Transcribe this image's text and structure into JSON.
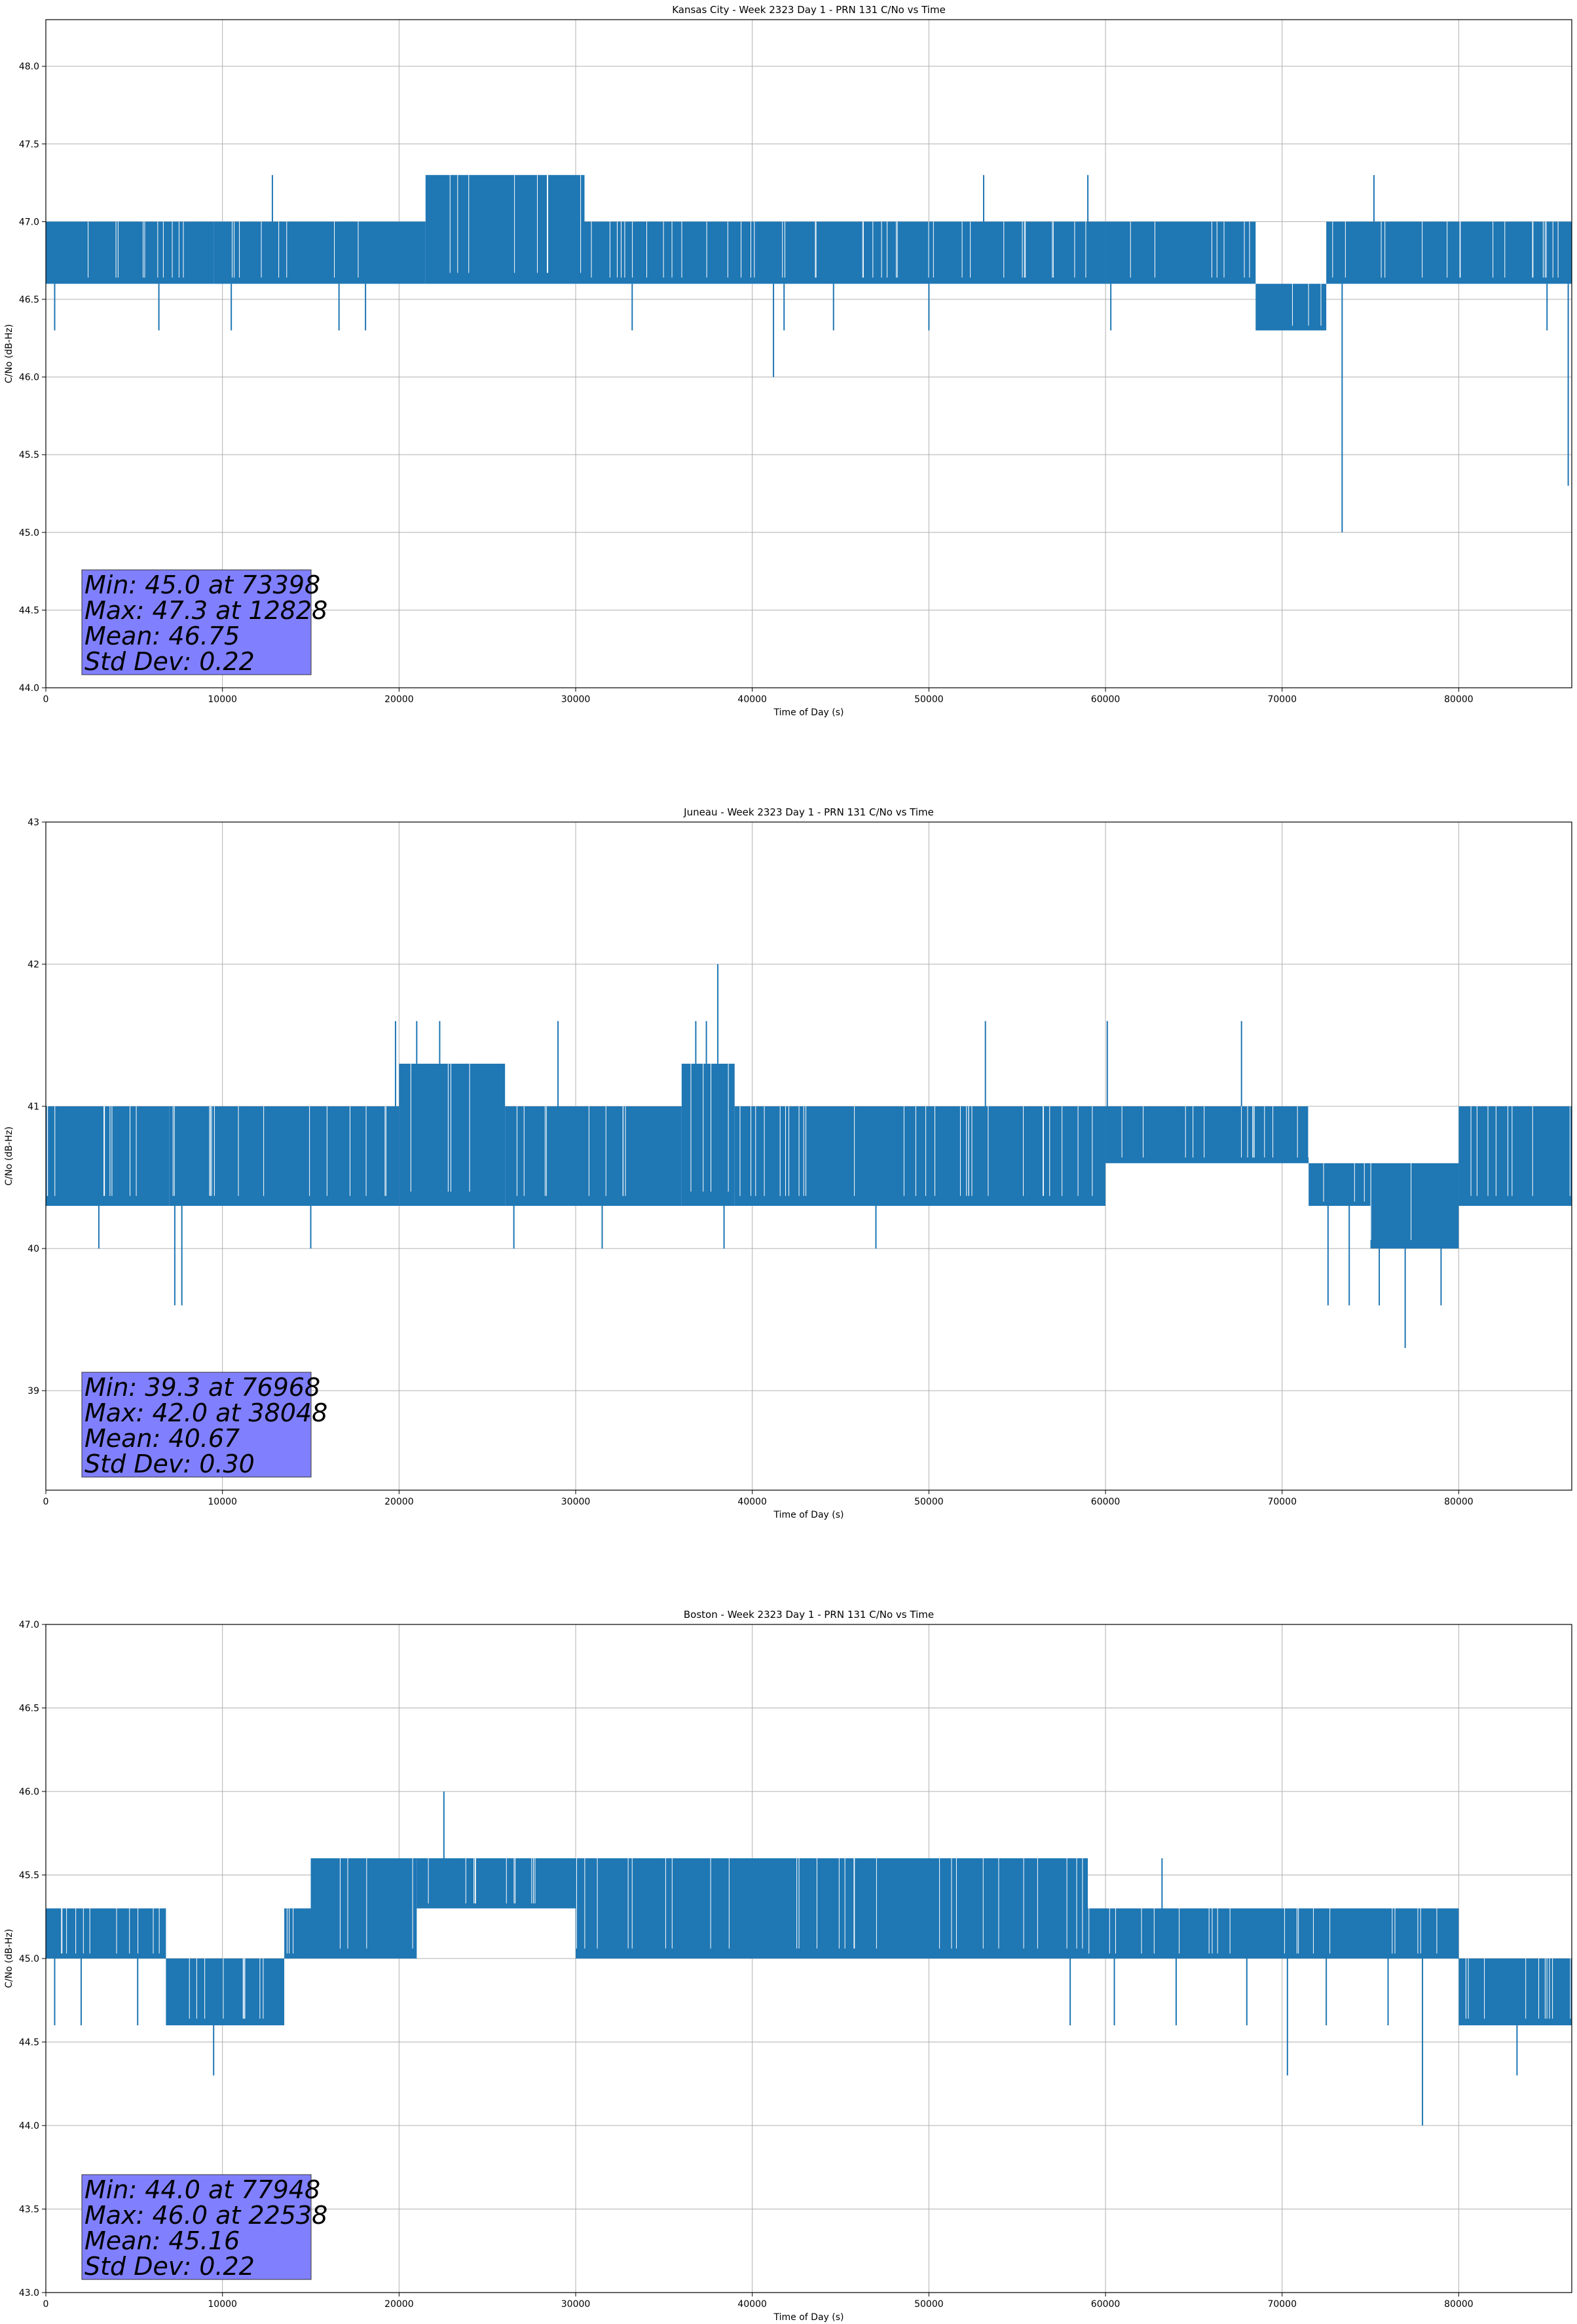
{
  "chart_data": [
    {
      "type": "line",
      "title": "Kansas City - Week 2323 Day 1 - PRN 131 C/No vs Time",
      "xlabel": "Time of Day (s)",
      "ylabel": "C/No (dB-Hz)",
      "xlim": [
        0,
        86400
      ],
      "ylim": [
        44.0,
        48.3
      ],
      "xticks": [
        0,
        10000,
        20000,
        30000,
        40000,
        50000,
        60000,
        70000,
        80000
      ],
      "xtick_labels": [
        "0",
        "10000",
        "20000",
        "30000",
        "40000",
        "50000",
        "60000",
        "70000",
        "80000"
      ],
      "yticks": [
        44.0,
        44.5,
        45.0,
        45.5,
        46.0,
        46.5,
        47.0,
        47.5,
        48.0
      ],
      "ytick_labels": [
        "44.0",
        "44.5",
        "45.0",
        "45.5",
        "46.0",
        "46.5",
        "47.0",
        "47.5",
        "48.0"
      ],
      "grid": true,
      "series_color": "#1f77b4",
      "band_segments": [
        {
          "x": [
            0,
            9500
          ],
          "lo": 46.6,
          "hi": 47.0
        },
        {
          "x": [
            9500,
            21500
          ],
          "lo": 46.6,
          "hi": 47.0
        },
        {
          "x": [
            21500,
            30500
          ],
          "lo": 46.6,
          "hi": 47.3
        },
        {
          "x": [
            30500,
            60000
          ],
          "lo": 46.6,
          "hi": 47.0
        },
        {
          "x": [
            60000,
            68500
          ],
          "lo": 46.6,
          "hi": 47.0
        },
        {
          "x": [
            68500,
            72500
          ],
          "lo": 46.3,
          "hi": 46.6
        },
        {
          "x": [
            72500,
            86400
          ],
          "lo": 46.6,
          "hi": 47.0
        }
      ],
      "spikes": [
        {
          "x": 73398,
          "y": 45.0
        },
        {
          "x": 12828,
          "y": 47.3
        },
        {
          "x": 41200,
          "y": 46.0
        },
        {
          "x": 86200,
          "y": 45.3
        },
        {
          "x": 75200,
          "y": 47.3
        },
        {
          "x": 500,
          "y": 46.3
        },
        {
          "x": 6400,
          "y": 46.3
        },
        {
          "x": 10500,
          "y": 46.3
        },
        {
          "x": 16600,
          "y": 46.3
        },
        {
          "x": 18100,
          "y": 46.3
        },
        {
          "x": 33200,
          "y": 46.3
        },
        {
          "x": 41800,
          "y": 46.3
        },
        {
          "x": 44600,
          "y": 46.3
        },
        {
          "x": 50000,
          "y": 46.3
        },
        {
          "x": 60300,
          "y": 46.3
        },
        {
          "x": 53100,
          "y": 47.3
        },
        {
          "x": 59000,
          "y": 47.3
        },
        {
          "x": 85000,
          "y": 46.3
        }
      ],
      "annotation": {
        "lines": [
          "Min: 45.0 at 73398",
          "Max: 47.3 at 12828",
          "Mean: 46.75",
          "Std Dev: 0.22"
        ],
        "box_color": "#8080ff"
      }
    },
    {
      "type": "line",
      "title": "Juneau - Week 2323 Day 1 - PRN 131 C/No vs Time",
      "xlabel": "Time of Day (s)",
      "ylabel": "C/No (dB-Hz)",
      "xlim": [
        0,
        86400
      ],
      "ylim": [
        38.3,
        43.0
      ],
      "xticks": [
        0,
        10000,
        20000,
        30000,
        40000,
        50000,
        60000,
        70000,
        80000
      ],
      "xtick_labels": [
        "0",
        "10000",
        "20000",
        "30000",
        "40000",
        "50000",
        "60000",
        "70000",
        "80000"
      ],
      "yticks": [
        39,
        40,
        41,
        42,
        43
      ],
      "ytick_labels": [
        "39",
        "40",
        "41",
        "42",
        "43"
      ],
      "grid": true,
      "series_color": "#1f77b4",
      "band_segments": [
        {
          "x": [
            0,
            7000
          ],
          "lo": 40.3,
          "hi": 41.0
        },
        {
          "x": [
            7000,
            20000
          ],
          "lo": 40.3,
          "hi": 41.0
        },
        {
          "x": [
            20000,
            26000
          ],
          "lo": 40.3,
          "hi": 41.3
        },
        {
          "x": [
            26000,
            36000
          ],
          "lo": 40.3,
          "hi": 41.0
        },
        {
          "x": [
            36000,
            39000
          ],
          "lo": 40.3,
          "hi": 41.3
        },
        {
          "x": [
            39000,
            60000
          ],
          "lo": 40.3,
          "hi": 41.0
        },
        {
          "x": [
            60000,
            71500
          ],
          "lo": 40.6,
          "hi": 41.0
        },
        {
          "x": [
            71500,
            75000
          ],
          "lo": 40.3,
          "hi": 40.6
        },
        {
          "x": [
            75000,
            80000
          ],
          "lo": 40.0,
          "hi": 40.6
        },
        {
          "x": [
            80000,
            86400
          ],
          "lo": 40.3,
          "hi": 41.0
        }
      ],
      "spikes": [
        {
          "x": 76968,
          "y": 39.3
        },
        {
          "x": 38048,
          "y": 42.0
        },
        {
          "x": 7300,
          "y": 39.6
        },
        {
          "x": 7700,
          "y": 39.6
        },
        {
          "x": 72600,
          "y": 39.6
        },
        {
          "x": 73800,
          "y": 39.6
        },
        {
          "x": 75500,
          "y": 39.6
        },
        {
          "x": 79000,
          "y": 39.6
        },
        {
          "x": 19800,
          "y": 41.6
        },
        {
          "x": 21000,
          "y": 41.6
        },
        {
          "x": 22300,
          "y": 41.6
        },
        {
          "x": 29000,
          "y": 41.6
        },
        {
          "x": 36800,
          "y": 41.6
        },
        {
          "x": 37400,
          "y": 41.6
        },
        {
          "x": 53200,
          "y": 41.6
        },
        {
          "x": 60100,
          "y": 41.6
        },
        {
          "x": 67700,
          "y": 41.6
        },
        {
          "x": 3000,
          "y": 40.0
        },
        {
          "x": 15000,
          "y": 40.0
        },
        {
          "x": 26500,
          "y": 40.0
        },
        {
          "x": 31500,
          "y": 40.0
        },
        {
          "x": 38400,
          "y": 40.0
        },
        {
          "x": 47000,
          "y": 40.0
        }
      ],
      "annotation": {
        "lines": [
          "Min: 39.3 at 76968",
          "Max: 42.0 at 38048",
          "Mean: 40.67",
          "Std Dev: 0.30"
        ],
        "box_color": "#8080ff"
      }
    },
    {
      "type": "line",
      "title": "Boston - Week 2323 Day 1 - PRN 131 C/No vs Time",
      "xlabel": "Time of Day (s)",
      "ylabel": "C/No (dB-Hz)",
      "xlim": [
        0,
        86400
      ],
      "ylim": [
        43.0,
        47.0
      ],
      "xticks": [
        0,
        10000,
        20000,
        30000,
        40000,
        50000,
        60000,
        70000,
        80000
      ],
      "xtick_labels": [
        "0",
        "10000",
        "20000",
        "30000",
        "40000",
        "50000",
        "60000",
        "70000",
        "80000"
      ],
      "yticks": [
        43.0,
        43.5,
        44.0,
        44.5,
        45.0,
        45.5,
        46.0,
        46.5,
        47.0
      ],
      "ytick_labels": [
        "43.0",
        "43.5",
        "44.0",
        "44.5",
        "45.0",
        "45.5",
        "46.0",
        "46.5",
        "47.0"
      ],
      "grid": true,
      "series_color": "#1f77b4",
      "band_segments": [
        {
          "x": [
            0,
            6800
          ],
          "lo": 45.0,
          "hi": 45.3
        },
        {
          "x": [
            6800,
            13500
          ],
          "lo": 44.6,
          "hi": 45.0
        },
        {
          "x": [
            13500,
            15000
          ],
          "lo": 45.0,
          "hi": 45.3
        },
        {
          "x": [
            15000,
            21000
          ],
          "lo": 45.0,
          "hi": 45.6
        },
        {
          "x": [
            21000,
            30000
          ],
          "lo": 45.3,
          "hi": 45.6
        },
        {
          "x": [
            30000,
            59000
          ],
          "lo": 45.0,
          "hi": 45.6
        },
        {
          "x": [
            59000,
            80000
          ],
          "lo": 45.0,
          "hi": 45.3
        },
        {
          "x": [
            80000,
            86400
          ],
          "lo": 44.6,
          "hi": 45.0
        }
      ],
      "spikes": [
        {
          "x": 77948,
          "y": 44.0
        },
        {
          "x": 22538,
          "y": 46.0
        },
        {
          "x": 9500,
          "y": 44.3
        },
        {
          "x": 70300,
          "y": 44.3
        },
        {
          "x": 83300,
          "y": 44.3
        },
        {
          "x": 500,
          "y": 44.6
        },
        {
          "x": 2000,
          "y": 44.6
        },
        {
          "x": 5200,
          "y": 44.6
        },
        {
          "x": 58000,
          "y": 44.6
        },
        {
          "x": 60500,
          "y": 44.6
        },
        {
          "x": 64000,
          "y": 44.6
        },
        {
          "x": 68000,
          "y": 44.6
        },
        {
          "x": 72500,
          "y": 44.6
        },
        {
          "x": 76000,
          "y": 44.6
        },
        {
          "x": 63200,
          "y": 45.6
        }
      ],
      "annotation": {
        "lines": [
          "Min: 44.0 at 77948",
          "Max: 46.0 at 22538",
          "Mean: 45.16",
          "Std Dev: 0.22"
        ],
        "box_color": "#8080ff"
      }
    }
  ]
}
